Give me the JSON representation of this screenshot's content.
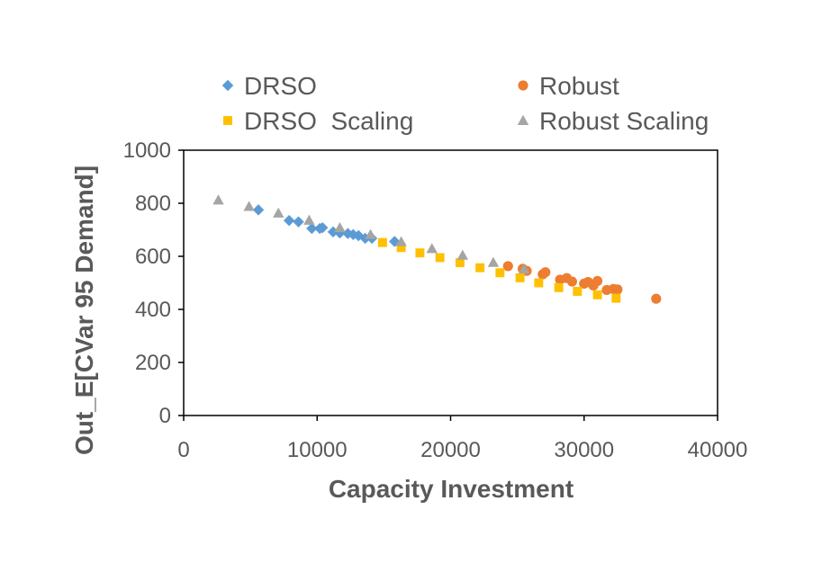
{
  "chart_data": {
    "type": "scatter",
    "title": "",
    "xlabel": "Capacity Investment",
    "ylabel": "Out_E[CVar 95 Demand]",
    "xlim": [
      0,
      40000
    ],
    "ylim": [
      0,
      1000
    ],
    "x_ticks": [
      0,
      10000,
      20000,
      30000,
      40000
    ],
    "y_ticks": [
      0,
      200,
      400,
      600,
      800,
      1000
    ],
    "grid": false,
    "legend_position": "top",
    "series": [
      {
        "name": "DRSO",
        "marker": "diamond",
        "color": "#5B9BD5",
        "points": [
          [
            5600,
            775
          ],
          [
            7900,
            735
          ],
          [
            8600,
            730
          ],
          [
            9600,
            705
          ],
          [
            10200,
            705
          ],
          [
            10400,
            708
          ],
          [
            11200,
            692
          ],
          [
            11700,
            688
          ],
          [
            12300,
            686
          ],
          [
            12700,
            682
          ],
          [
            13100,
            678
          ],
          [
            13600,
            668
          ],
          [
            14100,
            668
          ],
          [
            15800,
            656
          ]
        ]
      },
      {
        "name": "Robust",
        "marker": "circle",
        "color": "#ED7D31",
        "points": [
          [
            24300,
            563
          ],
          [
            25400,
            553
          ],
          [
            25700,
            545
          ],
          [
            26900,
            532
          ],
          [
            27100,
            540
          ],
          [
            28200,
            512
          ],
          [
            28700,
            518
          ],
          [
            29100,
            505
          ],
          [
            30000,
            497
          ],
          [
            30300,
            503
          ],
          [
            30700,
            490
          ],
          [
            31000,
            507
          ],
          [
            31700,
            473
          ],
          [
            32200,
            477
          ],
          [
            32500,
            475
          ],
          [
            35400,
            440
          ]
        ]
      },
      {
        "name": "DRSO  Scaling",
        "marker": "square",
        "color": "#FFC000",
        "points": [
          [
            14900,
            652
          ],
          [
            16300,
            633
          ],
          [
            17700,
            613
          ],
          [
            19200,
            595
          ],
          [
            20700,
            576
          ],
          [
            22200,
            557
          ],
          [
            23700,
            538
          ],
          [
            25200,
            519
          ],
          [
            26600,
            500
          ],
          [
            28100,
            482
          ],
          [
            29500,
            468
          ],
          [
            31000,
            455
          ],
          [
            32400,
            442
          ]
        ]
      },
      {
        "name": "Robust Scaling",
        "marker": "triangle",
        "color": "#A5A5A5",
        "points": [
          [
            2600,
            812
          ],
          [
            4900,
            788
          ],
          [
            7100,
            763
          ],
          [
            9400,
            736
          ],
          [
            11700,
            708
          ],
          [
            14000,
            682
          ],
          [
            16300,
            655
          ],
          [
            18600,
            629
          ],
          [
            20900,
            604
          ],
          [
            23200,
            577
          ],
          [
            25500,
            552
          ]
        ]
      }
    ]
  }
}
